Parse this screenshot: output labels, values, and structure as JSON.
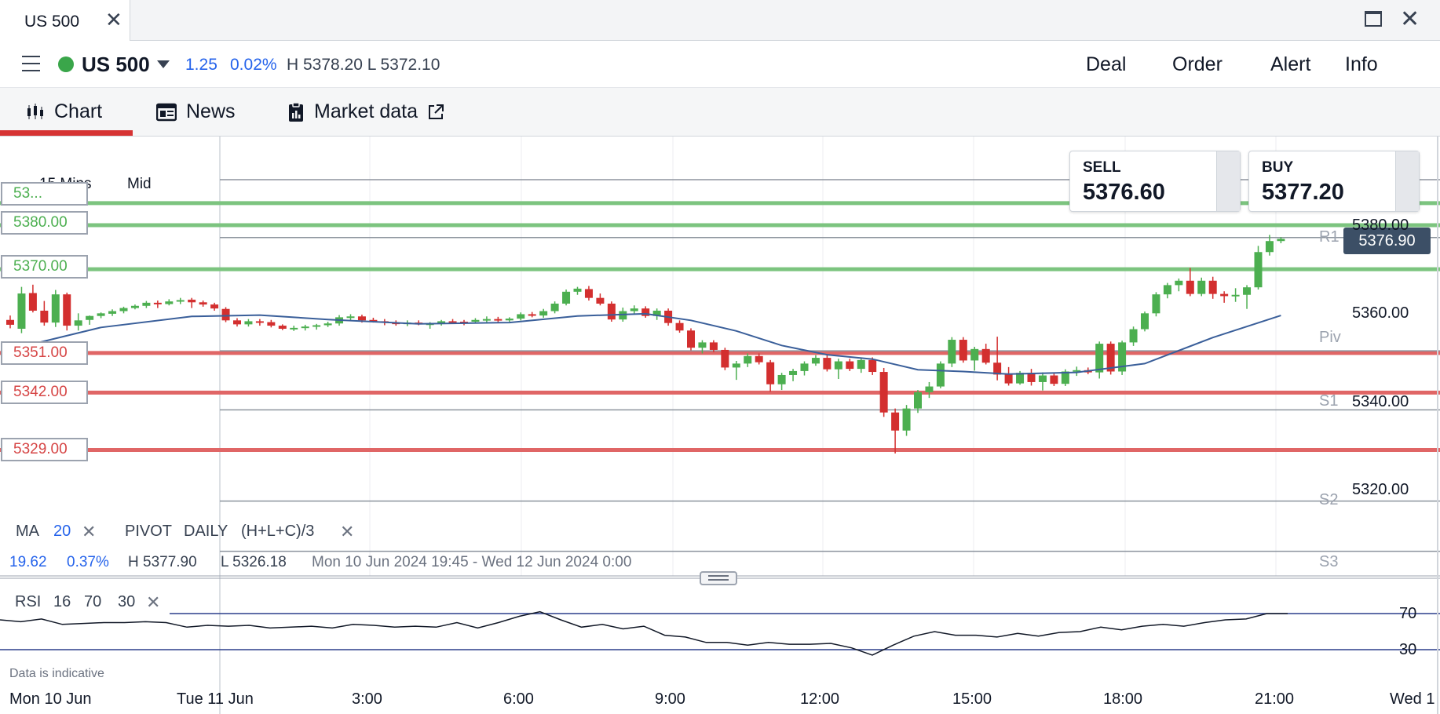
{
  "window": {
    "tab_title": "US 500",
    "tab_close": "✕",
    "close_glyph": "✕"
  },
  "header": {
    "instrument": "US 500",
    "status_color": "#3aa64a",
    "change_abs": "1.25",
    "change_pct": "0.02%",
    "high_low": "H 5378.20  L 5372.10",
    "buttons": [
      "Deal",
      "Order",
      "Alert",
      "Info"
    ]
  },
  "tabs": [
    {
      "label": "Chart",
      "icon": "candlestick-icon",
      "active": true
    },
    {
      "label": "News",
      "icon": "newspaper-icon",
      "active": false
    },
    {
      "label": "Market data",
      "icon": "clipboard-icon",
      "active": false
    }
  ],
  "chart_controls": {
    "timeframe": "15 Mins",
    "price_mode": "Mid"
  },
  "quotes": {
    "sell_label": "SELL",
    "sell_value": "5376.60",
    "buy_label": "BUY",
    "buy_value": "5377.20",
    "current_price": "5376.90"
  },
  "level_labels": [
    {
      "value": "53...",
      "color": "green"
    },
    {
      "value": "5380.00",
      "color": "green"
    },
    {
      "value": "5370.00",
      "color": "green"
    },
    {
      "value": "5351.00",
      "color": "red"
    },
    {
      "value": "5342.00",
      "color": "red"
    },
    {
      "value": "5329.00",
      "color": "red"
    }
  ],
  "axis": {
    "price_labels": [
      "5380.00",
      "5360.00",
      "5340.00",
      "5320.00"
    ],
    "pivot_labels": [
      "R1",
      "Piv",
      "S1",
      "S2",
      "S3"
    ],
    "time_labels": [
      "Mon 10 Jun",
      "Tue 11 Jun",
      "3:00",
      "6:00",
      "9:00",
      "12:00",
      "15:00",
      "18:00",
      "21:00",
      "Wed 1"
    ]
  },
  "indicators": {
    "ma_label": "MA",
    "ma_period": "20",
    "pivot_label": "PIVOT",
    "pivot_period": "DAILY",
    "pivot_formula": "(H+L+C)/3",
    "remove_glyph": "✕"
  },
  "stats": {
    "change_abs": "19.62",
    "change_pct": "0.37%",
    "high": "H 5377.90",
    "low": "L 5326.18",
    "range": "Mon 10 Jun 2024 19:45 - Wed 12 Jun 2024 0:00"
  },
  "rsi": {
    "label": "RSI",
    "period": "16",
    "upper": "70",
    "lower": "30",
    "level_upper": "70",
    "level_lower": "30"
  },
  "disclaimer": "Data is indicative",
  "colors": {
    "up_candle": "#4caf50",
    "down_candle": "#d32f2f",
    "ma_line": "#3a5f9a",
    "resistance": "#7cc47f",
    "support": "#e06666",
    "active_tab": "#d63333"
  },
  "chart_data": {
    "type": "candlestick",
    "interval": "15 Mins",
    "y_range": [
      5312,
      5387
    ],
    "candles": [
      {
        "o": 5358.5,
        "h": 5359.5,
        "l": 5356.6,
        "c": 5357.4
      },
      {
        "o": 5356.5,
        "h": 5366.0,
        "l": 5355.5,
        "c": 5364.5
      },
      {
        "o": 5364.6,
        "h": 5366.5,
        "l": 5360.2,
        "c": 5360.6
      },
      {
        "o": 5360.6,
        "h": 5362.8,
        "l": 5357.2,
        "c": 5357.9
      },
      {
        "o": 5357.9,
        "h": 5365.3,
        "l": 5356.9,
        "c": 5364.3
      },
      {
        "o": 5364.3,
        "h": 5364.7,
        "l": 5356.1,
        "c": 5357.2
      },
      {
        "o": 5357.2,
        "h": 5360.0,
        "l": 5356.1,
        "c": 5358.4
      },
      {
        "o": 5358.5,
        "h": 5359.5,
        "l": 5357.4,
        "c": 5359.4
      },
      {
        "o": 5359.4,
        "h": 5360.2,
        "l": 5358.9,
        "c": 5360.0
      },
      {
        "o": 5359.9,
        "h": 5360.9,
        "l": 5359.4,
        "c": 5360.5
      },
      {
        "o": 5360.5,
        "h": 5361.5,
        "l": 5360.0,
        "c": 5361.2
      },
      {
        "o": 5361.2,
        "h": 5362.0,
        "l": 5360.9,
        "c": 5361.7
      },
      {
        "o": 5361.7,
        "h": 5362.8,
        "l": 5361.2,
        "c": 5362.4
      },
      {
        "o": 5362.4,
        "h": 5362.9,
        "l": 5361.2,
        "c": 5362.1
      },
      {
        "o": 5362.1,
        "h": 5363.2,
        "l": 5361.8,
        "c": 5362.7
      },
      {
        "o": 5362.7,
        "h": 5363.5,
        "l": 5362.1,
        "c": 5363.0
      },
      {
        "o": 5363.1,
        "h": 5363.5,
        "l": 5361.2,
        "c": 5362.5
      },
      {
        "o": 5362.5,
        "h": 5362.9,
        "l": 5361.5,
        "c": 5362.0
      },
      {
        "o": 5362.0,
        "h": 5362.4,
        "l": 5360.6,
        "c": 5361.1
      },
      {
        "o": 5361.0,
        "h": 5361.4,
        "l": 5358.0,
        "c": 5358.4
      },
      {
        "o": 5358.4,
        "h": 5358.9,
        "l": 5357.0,
        "c": 5357.5
      },
      {
        "o": 5357.5,
        "h": 5358.7,
        "l": 5357.0,
        "c": 5358.2
      },
      {
        "o": 5358.2,
        "h": 5358.7,
        "l": 5357.2,
        "c": 5358.0
      },
      {
        "o": 5358.0,
        "h": 5358.5,
        "l": 5356.8,
        "c": 5357.2
      },
      {
        "o": 5357.2,
        "h": 5357.5,
        "l": 5356.2,
        "c": 5356.5
      },
      {
        "o": 5356.6,
        "h": 5357.2,
        "l": 5356.0,
        "c": 5356.7
      },
      {
        "o": 5356.7,
        "h": 5357.4,
        "l": 5356.1,
        "c": 5357.0
      },
      {
        "o": 5357.1,
        "h": 5357.6,
        "l": 5356.3,
        "c": 5357.3
      },
      {
        "o": 5357.3,
        "h": 5358.1,
        "l": 5356.9,
        "c": 5357.7
      },
      {
        "o": 5357.7,
        "h": 5359.6,
        "l": 5357.2,
        "c": 5359.1
      },
      {
        "o": 5359.1,
        "h": 5359.8,
        "l": 5358.4,
        "c": 5359.3
      },
      {
        "o": 5359.3,
        "h": 5359.7,
        "l": 5357.9,
        "c": 5358.4
      },
      {
        "o": 5358.5,
        "h": 5359.0,
        "l": 5357.9,
        "c": 5358.2
      },
      {
        "o": 5358.2,
        "h": 5358.7,
        "l": 5357.3,
        "c": 5357.9
      },
      {
        "o": 5357.9,
        "h": 5358.4,
        "l": 5357.2,
        "c": 5357.6
      },
      {
        "o": 5357.6,
        "h": 5358.4,
        "l": 5357.1,
        "c": 5357.9
      },
      {
        "o": 5357.9,
        "h": 5358.4,
        "l": 5357.3,
        "c": 5357.7
      },
      {
        "o": 5357.7,
        "h": 5358.0,
        "l": 5356.5,
        "c": 5357.7
      },
      {
        "o": 5357.7,
        "h": 5358.5,
        "l": 5357.2,
        "c": 5358.2
      },
      {
        "o": 5358.2,
        "h": 5358.7,
        "l": 5357.7,
        "c": 5358.1
      },
      {
        "o": 5358.1,
        "h": 5358.5,
        "l": 5357.3,
        "c": 5358.0
      },
      {
        "o": 5358.1,
        "h": 5358.9,
        "l": 5357.7,
        "c": 5358.5
      },
      {
        "o": 5358.5,
        "h": 5359.3,
        "l": 5357.9,
        "c": 5358.7
      },
      {
        "o": 5358.7,
        "h": 5359.2,
        "l": 5358.0,
        "c": 5358.4
      },
      {
        "o": 5358.4,
        "h": 5359.1,
        "l": 5358.1,
        "c": 5358.8
      },
      {
        "o": 5358.8,
        "h": 5360.2,
        "l": 5358.4,
        "c": 5359.8
      },
      {
        "o": 5359.8,
        "h": 5360.3,
        "l": 5359.1,
        "c": 5359.5
      },
      {
        "o": 5359.5,
        "h": 5361.0,
        "l": 5359.0,
        "c": 5360.5
      },
      {
        "o": 5360.5,
        "h": 5362.7,
        "l": 5360.0,
        "c": 5362.2
      },
      {
        "o": 5362.2,
        "h": 5365.4,
        "l": 5361.8,
        "c": 5364.9
      },
      {
        "o": 5364.9,
        "h": 5366.0,
        "l": 5364.2,
        "c": 5365.6
      },
      {
        "o": 5365.5,
        "h": 5366.2,
        "l": 5362.9,
        "c": 5363.5
      },
      {
        "o": 5363.5,
        "h": 5364.5,
        "l": 5361.8,
        "c": 5362.2
      },
      {
        "o": 5362.2,
        "h": 5362.7,
        "l": 5358.1,
        "c": 5358.6
      },
      {
        "o": 5358.6,
        "h": 5361.3,
        "l": 5358.1,
        "c": 5360.5
      },
      {
        "o": 5360.5,
        "h": 5361.8,
        "l": 5359.8,
        "c": 5361.1
      },
      {
        "o": 5361.1,
        "h": 5361.6,
        "l": 5359.0,
        "c": 5359.4
      },
      {
        "o": 5359.4,
        "h": 5361.1,
        "l": 5358.5,
        "c": 5360.6
      },
      {
        "o": 5360.6,
        "h": 5361.1,
        "l": 5357.2,
        "c": 5357.8
      },
      {
        "o": 5357.8,
        "h": 5358.4,
        "l": 5355.6,
        "c": 5356.1
      },
      {
        "o": 5356.1,
        "h": 5356.6,
        "l": 5351.6,
        "c": 5352.2
      },
      {
        "o": 5352.2,
        "h": 5353.9,
        "l": 5350.9,
        "c": 5353.4
      },
      {
        "o": 5353.4,
        "h": 5353.9,
        "l": 5351.2,
        "c": 5351.7
      },
      {
        "o": 5351.7,
        "h": 5352.2,
        "l": 5347.1,
        "c": 5347.7
      },
      {
        "o": 5347.7,
        "h": 5349.2,
        "l": 5344.9,
        "c": 5348.6
      },
      {
        "o": 5348.6,
        "h": 5350.9,
        "l": 5347.8,
        "c": 5350.3
      },
      {
        "o": 5350.3,
        "h": 5350.9,
        "l": 5348.4,
        "c": 5348.9
      },
      {
        "o": 5348.9,
        "h": 5349.4,
        "l": 5342.2,
        "c": 5343.9
      },
      {
        "o": 5343.9,
        "h": 5346.5,
        "l": 5342.6,
        "c": 5346.0
      },
      {
        "o": 5346.0,
        "h": 5347.4,
        "l": 5344.6,
        "c": 5346.9
      },
      {
        "o": 5346.9,
        "h": 5349.1,
        "l": 5345.9,
        "c": 5348.6
      },
      {
        "o": 5348.6,
        "h": 5350.5,
        "l": 5348.1,
        "c": 5349.9
      },
      {
        "o": 5349.9,
        "h": 5350.5,
        "l": 5346.8,
        "c": 5347.3
      },
      {
        "o": 5347.3,
        "h": 5349.7,
        "l": 5345.1,
        "c": 5349.1
      },
      {
        "o": 5349.1,
        "h": 5349.7,
        "l": 5346.9,
        "c": 5347.4
      },
      {
        "o": 5347.4,
        "h": 5349.9,
        "l": 5346.5,
        "c": 5349.4
      },
      {
        "o": 5349.4,
        "h": 5350.0,
        "l": 5346.0,
        "c": 5346.7
      },
      {
        "o": 5346.7,
        "h": 5347.6,
        "l": 5336.5,
        "c": 5337.5
      },
      {
        "o": 5337.5,
        "h": 5338.4,
        "l": 5328.2,
        "c": 5333.4
      },
      {
        "o": 5333.4,
        "h": 5339.2,
        "l": 5332.2,
        "c": 5338.4
      },
      {
        "o": 5338.4,
        "h": 5342.6,
        "l": 5337.4,
        "c": 5342.1
      },
      {
        "o": 5342.1,
        "h": 5344.4,
        "l": 5340.8,
        "c": 5343.4
      },
      {
        "o": 5343.4,
        "h": 5349.1,
        "l": 5343.0,
        "c": 5348.6
      },
      {
        "o": 5348.6,
        "h": 5354.6,
        "l": 5347.8,
        "c": 5354.0
      },
      {
        "o": 5354.0,
        "h": 5354.6,
        "l": 5348.8,
        "c": 5349.3
      },
      {
        "o": 5349.3,
        "h": 5352.4,
        "l": 5347.0,
        "c": 5351.9
      },
      {
        "o": 5351.9,
        "h": 5353.1,
        "l": 5348.4,
        "c": 5348.8
      },
      {
        "o": 5348.8,
        "h": 5354.7,
        "l": 5344.8,
        "c": 5346.1
      },
      {
        "o": 5346.1,
        "h": 5347.8,
        "l": 5343.6,
        "c": 5344.1
      },
      {
        "o": 5344.1,
        "h": 5346.9,
        "l": 5343.8,
        "c": 5346.5
      },
      {
        "o": 5346.5,
        "h": 5347.4,
        "l": 5343.6,
        "c": 5344.4
      },
      {
        "o": 5344.4,
        "h": 5346.6,
        "l": 5342.5,
        "c": 5345.9
      },
      {
        "o": 5345.9,
        "h": 5346.5,
        "l": 5343.5,
        "c": 5344.0
      },
      {
        "o": 5344.0,
        "h": 5347.3,
        "l": 5343.5,
        "c": 5346.8
      },
      {
        "o": 5346.8,
        "h": 5347.9,
        "l": 5345.8,
        "c": 5347.1
      },
      {
        "o": 5347.1,
        "h": 5347.7,
        "l": 5346.2,
        "c": 5346.6
      },
      {
        "o": 5346.6,
        "h": 5353.6,
        "l": 5345.2,
        "c": 5353.1
      },
      {
        "o": 5353.1,
        "h": 5353.6,
        "l": 5346.1,
        "c": 5346.8
      },
      {
        "o": 5346.8,
        "h": 5353.8,
        "l": 5346.0,
        "c": 5353.4
      },
      {
        "o": 5353.4,
        "h": 5357.0,
        "l": 5352.6,
        "c": 5356.4
      },
      {
        "o": 5356.4,
        "h": 5360.4,
        "l": 5355.9,
        "c": 5360.0
      },
      {
        "o": 5360.0,
        "h": 5364.8,
        "l": 5359.3,
        "c": 5364.3
      },
      {
        "o": 5364.3,
        "h": 5366.9,
        "l": 5363.4,
        "c": 5366.4
      },
      {
        "o": 5366.4,
        "h": 5367.9,
        "l": 5365.0,
        "c": 5367.4
      },
      {
        "o": 5367.4,
        "h": 5370.3,
        "l": 5363.9,
        "c": 5364.4
      },
      {
        "o": 5364.4,
        "h": 5368.1,
        "l": 5363.9,
        "c": 5367.4
      },
      {
        "o": 5367.4,
        "h": 5368.3,
        "l": 5363.3,
        "c": 5364.4
      },
      {
        "o": 5364.4,
        "h": 5365.0,
        "l": 5362.4,
        "c": 5363.9
      },
      {
        "o": 5363.9,
        "h": 5365.7,
        "l": 5362.6,
        "c": 5364.2
      },
      {
        "o": 5364.2,
        "h": 5366.4,
        "l": 5361.0,
        "c": 5365.9
      },
      {
        "o": 5365.9,
        "h": 5375.3,
        "l": 5365.4,
        "c": 5373.9
      },
      {
        "o": 5373.9,
        "h": 5377.8,
        "l": 5373.1,
        "c": 5376.4
      },
      {
        "o": 5376.4,
        "h": 5377.3,
        "l": 5375.9,
        "c": 5376.9
      }
    ],
    "ma": [
      {
        "i": 0,
        "v": 5351.8
      },
      {
        "i": 8,
        "v": 5356.8
      },
      {
        "i": 16,
        "v": 5359.3
      },
      {
        "i": 22,
        "v": 5359.6
      },
      {
        "i": 28,
        "v": 5358.6
      },
      {
        "i": 36,
        "v": 5357.6
      },
      {
        "i": 44,
        "v": 5357.9
      },
      {
        "i": 50,
        "v": 5359.4
      },
      {
        "i": 56,
        "v": 5359.9
      },
      {
        "i": 60,
        "v": 5358.4
      },
      {
        "i": 64,
        "v": 5356.0
      },
      {
        "i": 68,
        "v": 5352.7
      },
      {
        "i": 72,
        "v": 5350.6
      },
      {
        "i": 76,
        "v": 5349.6
      },
      {
        "i": 80,
        "v": 5347.2
      },
      {
        "i": 84,
        "v": 5346.8
      },
      {
        "i": 88,
        "v": 5346.2
      },
      {
        "i": 94,
        "v": 5346.6
      },
      {
        "i": 100,
        "v": 5348.6
      },
      {
        "i": 106,
        "v": 5354.5
      },
      {
        "i": 112,
        "v": 5359.5
      }
    ],
    "levels": [
      {
        "value": 5385,
        "style": "resistance"
      },
      {
        "value": 5380,
        "style": "resistance"
      },
      {
        "value": 5370,
        "style": "resistance"
      },
      {
        "value": 5351,
        "style": "support"
      },
      {
        "value": 5342,
        "style": "support"
      },
      {
        "value": 5329,
        "style": "support"
      }
    ],
    "pivots": [
      {
        "name": "R1",
        "value": 5377.2
      },
      {
        "name": "Piv",
        "value": 5351.5
      },
      {
        "name": "S1",
        "value": 5338.1
      },
      {
        "name": "S2",
        "value": 5317.4
      },
      {
        "name": "S3",
        "value": 5306.0
      }
    ],
    "rsi_range": [
      0,
      100
    ],
    "rsi": [
      63,
      61,
      64,
      58,
      59,
      60,
      60,
      61,
      60,
      55,
      57,
      56,
      57,
      54,
      55,
      56,
      54,
      58,
      57,
      55,
      56,
      55,
      60,
      54,
      60,
      67,
      72,
      63,
      55,
      58,
      53,
      56,
      46,
      44,
      38,
      38,
      35,
      38,
      36,
      36,
      37,
      32,
      24,
      35,
      45,
      50,
      46,
      46,
      44,
      48,
      45,
      49,
      50,
      55,
      52,
      56,
      58,
      56,
      60,
      63,
      64,
      70,
      70
    ]
  }
}
